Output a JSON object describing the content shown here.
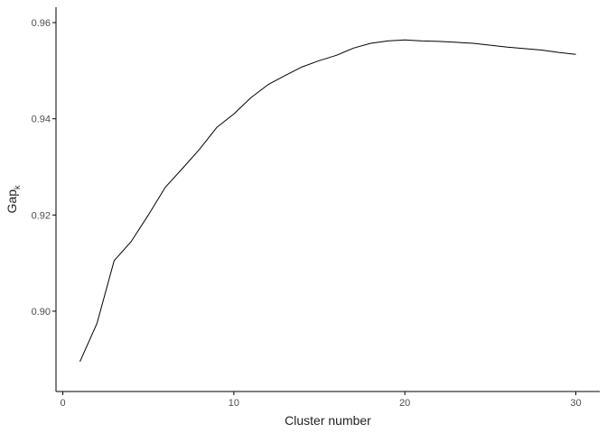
{
  "chart_data": {
    "type": "line",
    "title": "",
    "xlabel": "Cluster number",
    "ylabel": {
      "main": "Gap",
      "subscript": "k"
    },
    "xlim": [
      -0.4,
      31.4
    ],
    "ylim": [
      0.8833,
      0.9632
    ],
    "xticks": [
      0,
      10,
      20,
      30
    ],
    "xtick_labels": [
      "0",
      "10",
      "20",
      "30"
    ],
    "yticks": [
      0.9,
      0.92,
      0.94,
      0.96
    ],
    "ytick_labels": [
      "0.90",
      "0.92",
      "0.94",
      "0.96"
    ],
    "grid": false,
    "legend": "none",
    "line_color": "#000000",
    "series": [
      {
        "x": [
          1,
          2,
          3,
          4,
          5,
          6,
          7,
          8,
          9,
          10,
          11,
          12,
          13,
          14,
          15,
          16,
          17,
          18,
          19,
          20,
          21,
          22,
          23,
          24,
          25,
          26,
          27,
          28,
          29,
          30
        ],
        "values": [
          0.8895,
          0.8975,
          0.9105,
          0.9145,
          0.92,
          0.9258,
          0.9297,
          0.9337,
          0.9382,
          0.941,
          0.9444,
          0.9471,
          0.949,
          0.9508,
          0.9521,
          0.9532,
          0.9547,
          0.9557,
          0.9562,
          0.9564,
          0.9562,
          0.9561,
          0.9559,
          0.9557,
          0.9553,
          0.9549,
          0.9546,
          0.9543,
          0.9538,
          0.9534
        ]
      }
    ]
  }
}
